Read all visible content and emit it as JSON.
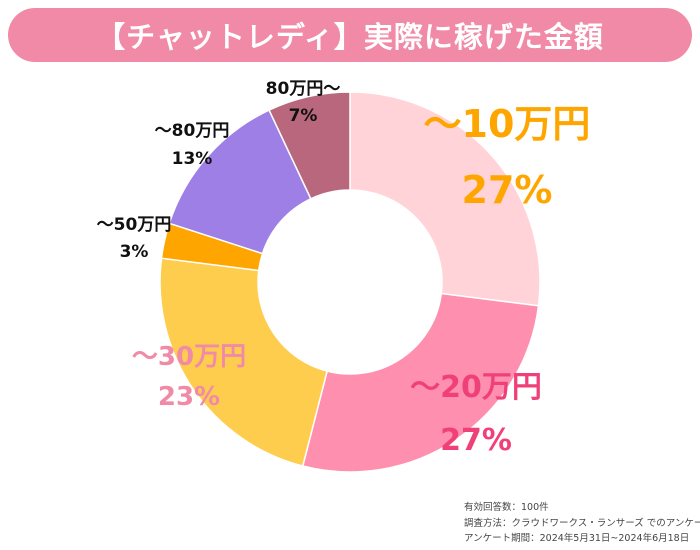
{
  "title": "【チャットレディ】実際に稼げた金額",
  "colors": {
    "title_bg": "#f08aa6",
    "title_text": "#ffffff"
  },
  "chart_data": {
    "type": "pie",
    "style": "donut",
    "categories": [
      "～10万円",
      "～20万円",
      "～30万円",
      "～50万円",
      "～80万円",
      "80万円～"
    ],
    "values": [
      27,
      27,
      23,
      3,
      13,
      7
    ],
    "unit": "%",
    "colors": [
      "#ffd3d8",
      "#ff8fae",
      "#ffcd4e",
      "#ffa500",
      "#9d7fe6",
      "#b8677c"
    ],
    "label_colors": [
      "#ffa500",
      "#f0407a",
      "#f08aa6",
      "#111111",
      "#111111",
      "#111111"
    ]
  },
  "footnotes": [
    "有効回答数：100件",
    "調査方法：クラウドワークス・ランサーズ でのアンケート",
    "アンケート期間：2024年5月31日~2024年6月18日"
  ]
}
